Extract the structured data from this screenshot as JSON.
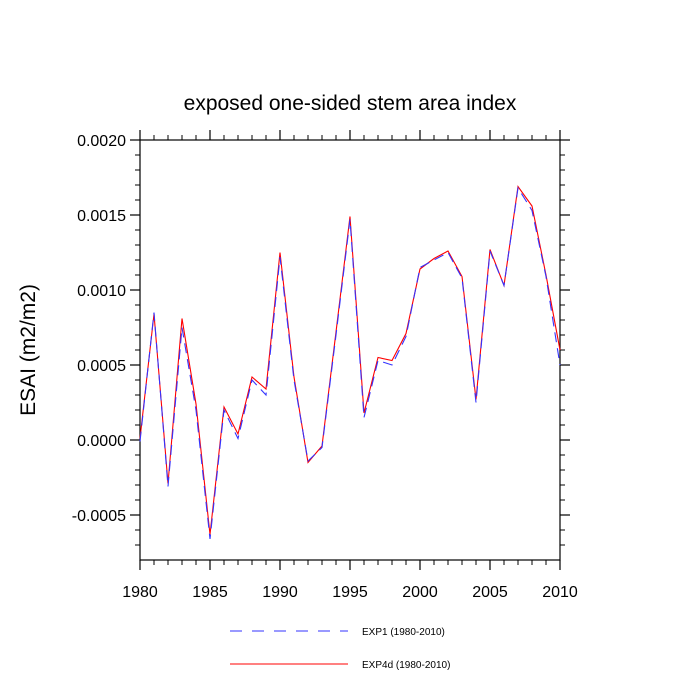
{
  "chart_data": {
    "type": "line",
    "title": "exposed one-sided stem area index",
    "xlabel": "",
    "ylabel": "ESAI  (m2/m2)",
    "xlim": [
      1980,
      2010
    ],
    "ylim": [
      -0.0008,
      0.002
    ],
    "x_ticks": [
      1980,
      1985,
      1990,
      1995,
      2000,
      2005,
      2010
    ],
    "x_tick_labels": [
      "1980",
      "1985",
      "1990",
      "1995",
      "2000",
      "2005",
      "2010"
    ],
    "y_ticks": [
      -0.0005,
      0.0,
      0.0005,
      0.001,
      0.0015,
      0.002
    ],
    "y_tick_labels": [
      "-0.0005",
      "0.0000",
      "0.0005",
      "0.0010",
      "0.0015",
      "0.0020"
    ],
    "grid": false,
    "legend_position": "bottom",
    "x": [
      1980,
      1981,
      1982,
      1983,
      1984,
      1985,
      1986,
      1987,
      1988,
      1989,
      1990,
      1991,
      1992,
      1993,
      1994,
      1995,
      1996,
      1997,
      1998,
      1999,
      2000,
      2001,
      2002,
      2003,
      2004,
      2005,
      2006,
      2007,
      2008,
      2009,
      2010
    ],
    "series": [
      {
        "name": "EXP1 (1980-2010)",
        "color": "#3333ff",
        "style": "dashed",
        "values": [
          -1e-05,
          0.00085,
          -0.00031,
          0.00075,
          0.0002,
          -0.00066,
          0.0002,
          1e-05,
          0.0004,
          0.0003,
          0.00122,
          0.0004,
          -0.00014,
          -5e-05,
          0.0007,
          0.00147,
          0.00015,
          0.00053,
          0.0005,
          0.00069,
          0.00115,
          0.0012,
          0.00125,
          0.00108,
          0.00025,
          0.00126,
          0.00103,
          0.00168,
          0.00153,
          0.00109,
          0.0005
        ]
      },
      {
        "name": "EXP4d (1980-2010)",
        "color": "#ff0000",
        "style": "solid",
        "values": [
          1e-05,
          0.00084,
          -0.00029,
          0.00081,
          0.00024,
          -0.00063,
          0.00022,
          4e-05,
          0.00042,
          0.00034,
          0.00125,
          0.00042,
          -0.00015,
          -4e-05,
          0.00072,
          0.00149,
          0.00018,
          0.00055,
          0.00053,
          0.00071,
          0.00114,
          0.00121,
          0.00126,
          0.00109,
          0.00027,
          0.00127,
          0.00103,
          0.00169,
          0.00156,
          0.0011,
          0.0006
        ]
      }
    ]
  }
}
